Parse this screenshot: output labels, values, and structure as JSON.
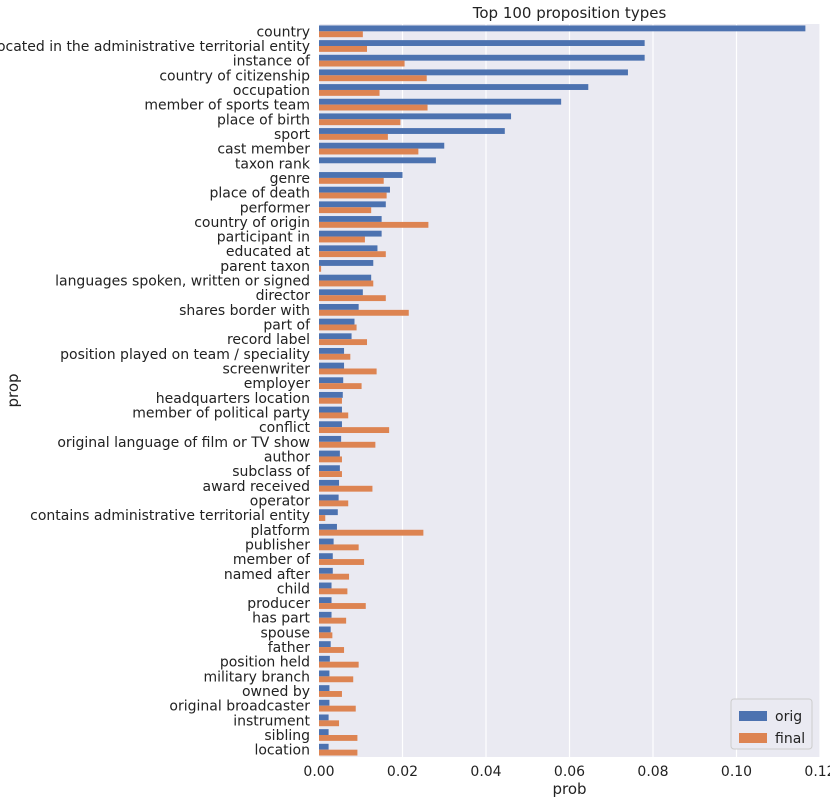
{
  "chart_data": {
    "type": "bar",
    "orientation": "horizontal",
    "title": "Top 100 proposition types",
    "xlabel": "prob",
    "ylabel": "prop",
    "xlim": [
      0,
      0.12
    ],
    "xticks": [
      "0.00",
      "0.02",
      "0.04",
      "0.06",
      "0.08",
      "0.10",
      "0.12"
    ],
    "grid": true,
    "legend_position": "bottom-right",
    "categories": [
      "country",
      "located in the administrative territorial entity",
      "instance of",
      "country of citizenship",
      "occupation",
      "member of sports team",
      "place of birth",
      "sport",
      "cast member",
      "taxon rank",
      "genre",
      "place of death",
      "performer",
      "country of origin",
      "participant in",
      "educated at",
      "parent taxon",
      "languages spoken, written or signed",
      "director",
      "shares border with",
      "part of",
      "record label",
      "position played on team / speciality",
      "screenwriter",
      "employer",
      "headquarters location",
      "member of political party",
      "conflict",
      "original language of film or TV show",
      "author",
      "subclass of",
      "award received",
      "operator",
      "contains administrative territorial entity",
      "platform",
      "publisher",
      "member of",
      "named after",
      "child",
      "producer",
      "has part",
      "spouse",
      "father",
      "position held",
      "military branch",
      "owned by",
      "original broadcaster",
      "instrument",
      "sibling",
      "location"
    ],
    "series": [
      {
        "name": "orig",
        "color": "#4c72b0",
        "values": [
          0.1165,
          0.078,
          0.078,
          0.074,
          0.0645,
          0.058,
          0.046,
          0.0445,
          0.03,
          0.028,
          0.02,
          0.017,
          0.016,
          0.015,
          0.015,
          0.014,
          0.013,
          0.0125,
          0.0105,
          0.0095,
          0.0085,
          0.0078,
          0.006,
          0.006,
          0.0058,
          0.0057,
          0.0055,
          0.0055,
          0.0053,
          0.005,
          0.005,
          0.0048,
          0.0047,
          0.0045,
          0.0043,
          0.0035,
          0.0033,
          0.0033,
          0.003,
          0.003,
          0.003,
          0.0028,
          0.0028,
          0.0026,
          0.0025,
          0.0025,
          0.0025,
          0.0023,
          0.0023,
          0.0023
        ]
      },
      {
        "name": "final",
        "color": "#dd8452",
        "values": [
          0.0105,
          0.0115,
          0.0205,
          0.0258,
          0.0145,
          0.026,
          0.0195,
          0.0165,
          0.0238,
          0.0,
          0.0155,
          0.0162,
          0.0125,
          0.0262,
          0.011,
          0.016,
          0.0005,
          0.013,
          0.016,
          0.0215,
          0.009,
          0.0115,
          0.0075,
          0.0138,
          0.0102,
          0.0055,
          0.007,
          0.0168,
          0.0135,
          0.0055,
          0.0055,
          0.0128,
          0.007,
          0.0015,
          0.025,
          0.0095,
          0.0108,
          0.0072,
          0.0068,
          0.0112,
          0.0065,
          0.0032,
          0.006,
          0.0095,
          0.0082,
          0.0055,
          0.0088,
          0.0048,
          0.0092,
          0.0092
        ]
      }
    ]
  }
}
